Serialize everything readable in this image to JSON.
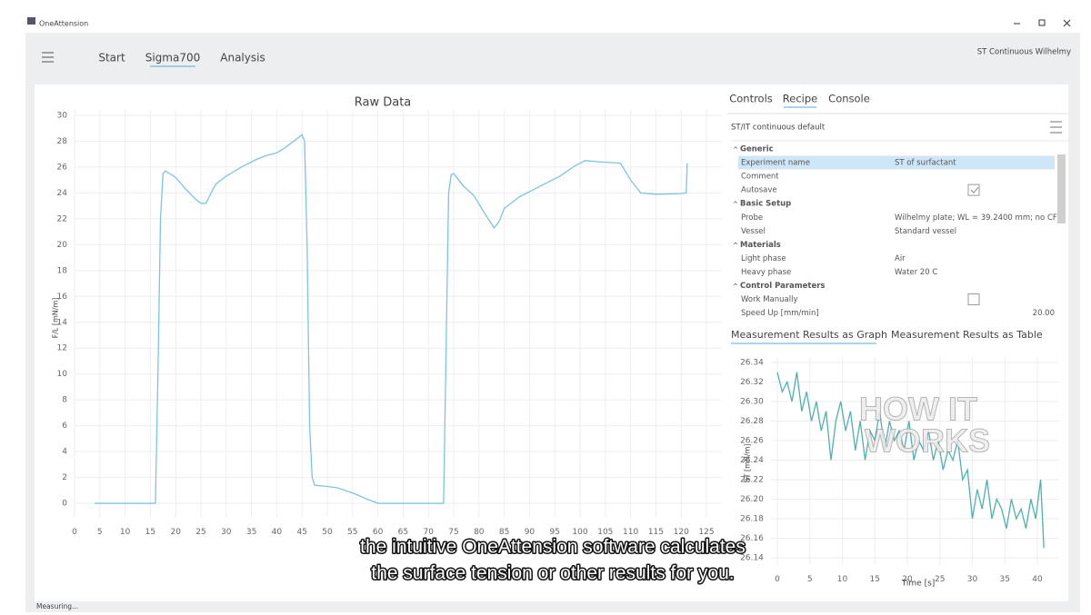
{
  "window": {
    "title": "OneAttension"
  },
  "nav": {
    "items": [
      "Start",
      "Sigma700",
      "Analysis"
    ],
    "active": 1,
    "method": "ST Continuous Wilhelmy"
  },
  "panel": {
    "tabs": [
      "Controls",
      "Recipe",
      "Console"
    ],
    "active_tab": 1,
    "recipe_name": "ST/IT continuous default",
    "rows": [
      {
        "section": "Generic"
      },
      {
        "label": "Experiment name",
        "value": "ST of surfactant",
        "selected": true
      },
      {
        "label": "Comment"
      },
      {
        "label": "Autosave",
        "checked": true
      },
      {
        "section": "Basic Setup"
      },
      {
        "label": "Probe",
        "value": "Wilhelmy plate; WL = 39.2400 mm; no CF"
      },
      {
        "label": "Vessel",
        "value": "Standard vessel"
      },
      {
        "section": "Materials"
      },
      {
        "label": "Light phase",
        "value": "Air"
      },
      {
        "label": "Heavy phase",
        "value": "Water 20 C"
      },
      {
        "section": "Control Parameters"
      },
      {
        "label": "Work Manually",
        "checked": false
      },
      {
        "label": "Speed Up [mm/min]",
        "number": "20.00"
      }
    ],
    "results_tabs": [
      "Measurement Results as Graph",
      "Measurement Results as Table"
    ],
    "results_active": 0
  },
  "overlay": {
    "watermark": [
      "HOW IT",
      "WORKS"
    ],
    "subtitles": [
      "the intuitive OneAttension software calculates",
      "the surface tension or other results for you."
    ]
  },
  "status": "Measuring...",
  "chart_data": [
    {
      "type": "line",
      "title": "Raw Data",
      "y_label": "F/L [mN/m]",
      "color": "#7cc4e4",
      "grid": true,
      "x": [
        4,
        10,
        16,
        16.5,
        17,
        17.5,
        18,
        20,
        22,
        24,
        25,
        26,
        27,
        28,
        30,
        33,
        36,
        38,
        40,
        42,
        44,
        45,
        45.5,
        46,
        46.5,
        47,
        47.5,
        50,
        52,
        55,
        58,
        60,
        65,
        70,
        73,
        73.5,
        74,
        74.5,
        75,
        77,
        79,
        81,
        83,
        84,
        85,
        88,
        92,
        96,
        99,
        101,
        104,
        108,
        110,
        112,
        115,
        120,
        121,
        121.2
      ],
      "values": [
        0,
        0,
        0,
        10,
        22,
        25.5,
        25.7,
        25.2,
        24.3,
        23.5,
        23.2,
        23.2,
        24,
        24.7,
        25.3,
        26,
        26.6,
        26.9,
        27.1,
        27.6,
        28.2,
        28.5,
        28,
        20,
        6,
        2,
        1.4,
        1.3,
        1.2,
        0.8,
        0.3,
        0,
        0,
        0,
        0,
        12,
        24,
        25.4,
        25.5,
        24.5,
        23.8,
        22.5,
        21.3,
        21.8,
        22.8,
        23.7,
        24.5,
        25.3,
        26.1,
        26.5,
        26.4,
        26.3,
        25,
        24,
        23.9,
        23.95,
        24,
        26.3
      ],
      "xlim": [
        0,
        128
      ],
      "ylim": [
        -1.1,
        30.4
      ],
      "xticks": [
        0,
        5,
        10,
        15,
        20,
        25,
        30,
        35,
        40,
        45,
        50,
        55,
        60,
        65,
        70,
        75,
        80,
        85,
        90,
        95,
        100,
        105,
        110,
        115,
        120,
        125
      ],
      "yticks": [
        0,
        2,
        4,
        6,
        8,
        10,
        12,
        14,
        16,
        18,
        20,
        22,
        24,
        26,
        28,
        30
      ]
    },
    {
      "type": "line",
      "x_label": "Time [s]",
      "y_label": "ST [mN/m]",
      "color": "#4fb0ad",
      "grid": true,
      "x": [
        0,
        0.75,
        1.5,
        2.25,
        3,
        3.75,
        4.5,
        5.25,
        6,
        6.75,
        7.5,
        8.25,
        9,
        9.75,
        10.5,
        11.25,
        12,
        12.75,
        13.5,
        14.25,
        15,
        15.75,
        16.5,
        17.25,
        18,
        18.75,
        19.5,
        20.25,
        21,
        21.75,
        22.5,
        23.25,
        24,
        24.75,
        25.5,
        26.25,
        27,
        27.75,
        28.5,
        29.25,
        30,
        30.75,
        31.5,
        32.25,
        33,
        33.75,
        34.5,
        35.25,
        36,
        36.75,
        37.5,
        38.25,
        39,
        39.75,
        40.5,
        41
      ],
      "values": [
        26.33,
        26.31,
        26.32,
        26.3,
        26.33,
        26.29,
        26.31,
        26.28,
        26.3,
        26.27,
        26.29,
        26.24,
        26.28,
        26.3,
        26.27,
        26.29,
        26.25,
        26.28,
        26.24,
        26.27,
        26.26,
        26.29,
        26.25,
        26.28,
        26.26,
        26.27,
        26.25,
        26.28,
        26.24,
        26.26,
        26.25,
        26.27,
        26.24,
        26.26,
        26.23,
        26.25,
        26.24,
        26.26,
        26.22,
        26.23,
        26.18,
        26.21,
        26.19,
        26.22,
        26.18,
        26.2,
        26.19,
        26.17,
        26.2,
        26.18,
        26.19,
        26.17,
        26.2,
        26.18,
        26.22,
        26.15
      ],
      "xlim": [
        -1,
        43.3
      ],
      "ylim": [
        26.133,
        26.345
      ],
      "xticks": [
        0,
        5,
        10,
        15,
        20,
        25,
        30,
        35,
        40
      ],
      "yticks": [
        26.34,
        26.32,
        {
          "value": 26.3,
          "label": "26.30"
        },
        26.28,
        26.26,
        26.24,
        26.22,
        {
          "value": 26.2,
          "label": "26.20"
        },
        26.18,
        26.16,
        26.14
      ]
    }
  ]
}
